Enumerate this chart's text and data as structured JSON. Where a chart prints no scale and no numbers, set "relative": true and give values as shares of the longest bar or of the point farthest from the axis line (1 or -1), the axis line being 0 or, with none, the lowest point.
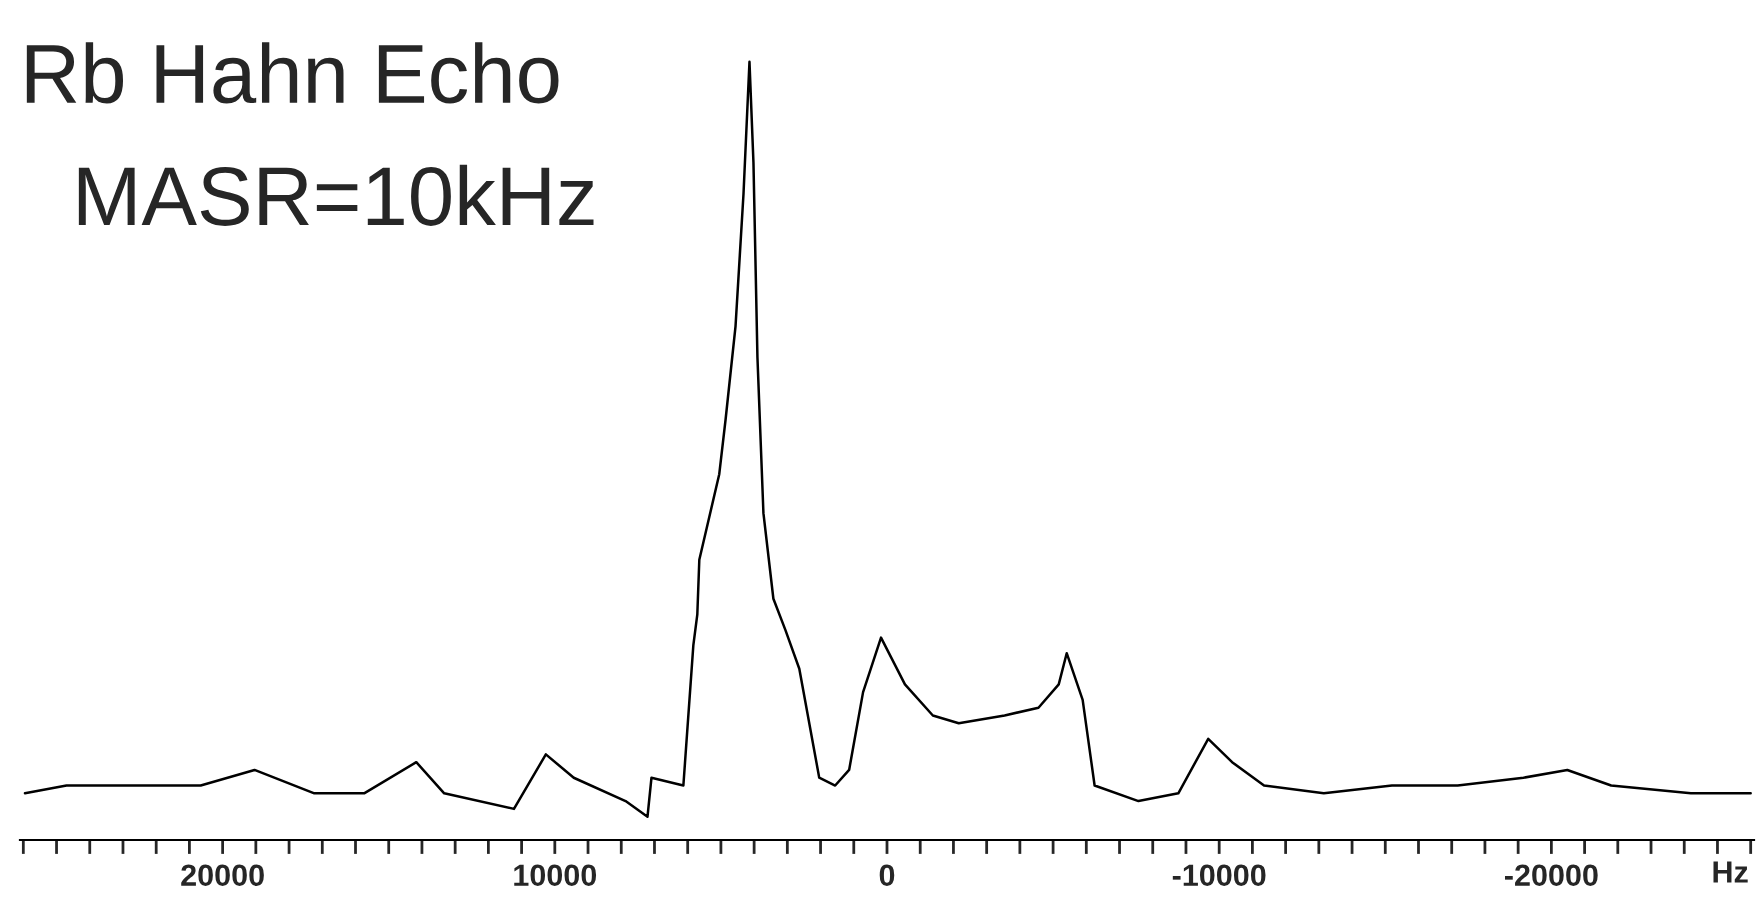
{
  "chart_data": {
    "type": "line",
    "relative": true,
    "xlabel": "Hz",
    "annotations": [
      "Rb Hahn Echo",
      "MASR=10kHz"
    ],
    "xlim": [
      26100,
      -26100
    ],
    "xticks": [
      {
        "value": 26000,
        "label": null
      },
      {
        "value": 25000,
        "label": null
      },
      {
        "value": 24000,
        "label": null
      },
      {
        "value": 23000,
        "label": null
      },
      {
        "value": 22000,
        "label": null
      },
      {
        "value": 21000,
        "label": null
      },
      20000,
      {
        "value": 19000,
        "label": null
      },
      {
        "value": 18000,
        "label": null
      },
      {
        "value": 17000,
        "label": null
      },
      {
        "value": 16000,
        "label": null
      },
      {
        "value": 15000,
        "label": null
      },
      {
        "value": 14000,
        "label": null
      },
      {
        "value": 13000,
        "label": null
      },
      {
        "value": 12000,
        "label": null
      },
      {
        "value": 11000,
        "label": null
      },
      10000,
      {
        "value": 9000,
        "label": null
      },
      {
        "value": 8000,
        "label": null
      },
      {
        "value": 7000,
        "label": null
      },
      {
        "value": 6000,
        "label": null
      },
      {
        "value": 5000,
        "label": null
      },
      {
        "value": 4000,
        "label": null
      },
      {
        "value": 3000,
        "label": null
      },
      {
        "value": 2000,
        "label": null
      },
      {
        "value": 1000,
        "label": null
      },
      0,
      {
        "value": -1000,
        "label": null
      },
      {
        "value": -2000,
        "label": null
      },
      {
        "value": -3000,
        "label": null
      },
      {
        "value": -4000,
        "label": null
      },
      {
        "value": -5000,
        "label": null
      },
      {
        "value": -6000,
        "label": null
      },
      {
        "value": -7000,
        "label": null
      },
      {
        "value": -8000,
        "label": null
      },
      {
        "value": -9000,
        "label": null
      },
      -10000,
      {
        "value": -11000,
        "label": null
      },
      {
        "value": -12000,
        "label": null
      },
      {
        "value": -13000,
        "label": null
      },
      {
        "value": -14000,
        "label": null
      },
      {
        "value": -15000,
        "label": null
      },
      {
        "value": -16000,
        "label": null
      },
      {
        "value": -17000,
        "label": null
      },
      {
        "value": -18000,
        "label": null
      },
      {
        "value": -19000,
        "label": null
      },
      -20000,
      {
        "value": -21000,
        "label": null
      },
      {
        "value": -22000,
        "label": null
      },
      {
        "value": -23000,
        "label": null
      },
      {
        "value": -24000,
        "label": null
      },
      {
        "value": -25000,
        "label": null
      },
      {
        "value": -26000,
        "label": null
      }
    ],
    "tick_labels": "x",
    "grid": false,
    "legend": false,
    "marker": "none",
    "line_style": "solid",
    "series": [
      {
        "color": "#000000",
        "x": [
          25950,
          24700,
          22650,
          20660,
          19040,
          17240,
          15740,
          14170,
          13330,
          11230,
          10270,
          9430,
          7870,
          7210,
          7090,
          6130,
          5830,
          5710,
          5650,
          5050,
          4860,
          4560,
          4320,
          4140,
          4020,
          3900,
          3720,
          3420,
          3060,
          2640,
          2040,
          1560,
          1140,
          720,
          180,
          -540,
          -1380,
          -2160,
          -3540,
          -4560,
          -5170,
          -5410,
          -5890,
          -6250,
          -7570,
          -8770,
          -9670,
          -10390,
          -11350,
          -13150,
          -15200,
          -17180,
          -19160,
          -20480,
          -21800,
          -24200,
          -26000
        ],
        "values": [
          0.06,
          0.07,
          0.07,
          0.07,
          0.09,
          0.06,
          0.06,
          0.1,
          0.06,
          0.04,
          0.11,
          0.08,
          0.05,
          0.03,
          0.08,
          0.07,
          0.25,
          0.29,
          0.36,
          0.47,
          0.54,
          0.66,
          0.83,
          1.0,
          0.87,
          0.62,
          0.42,
          0.31,
          0.27,
          0.22,
          0.08,
          0.07,
          0.09,
          0.19,
          0.26,
          0.2,
          0.16,
          0.15,
          0.16,
          0.17,
          0.2,
          0.24,
          0.18,
          0.07,
          0.05,
          0.06,
          0.13,
          0.1,
          0.07,
          0.06,
          0.07,
          0.07,
          0.08,
          0.09,
          0.07,
          0.06,
          0.06
        ]
      }
    ]
  }
}
